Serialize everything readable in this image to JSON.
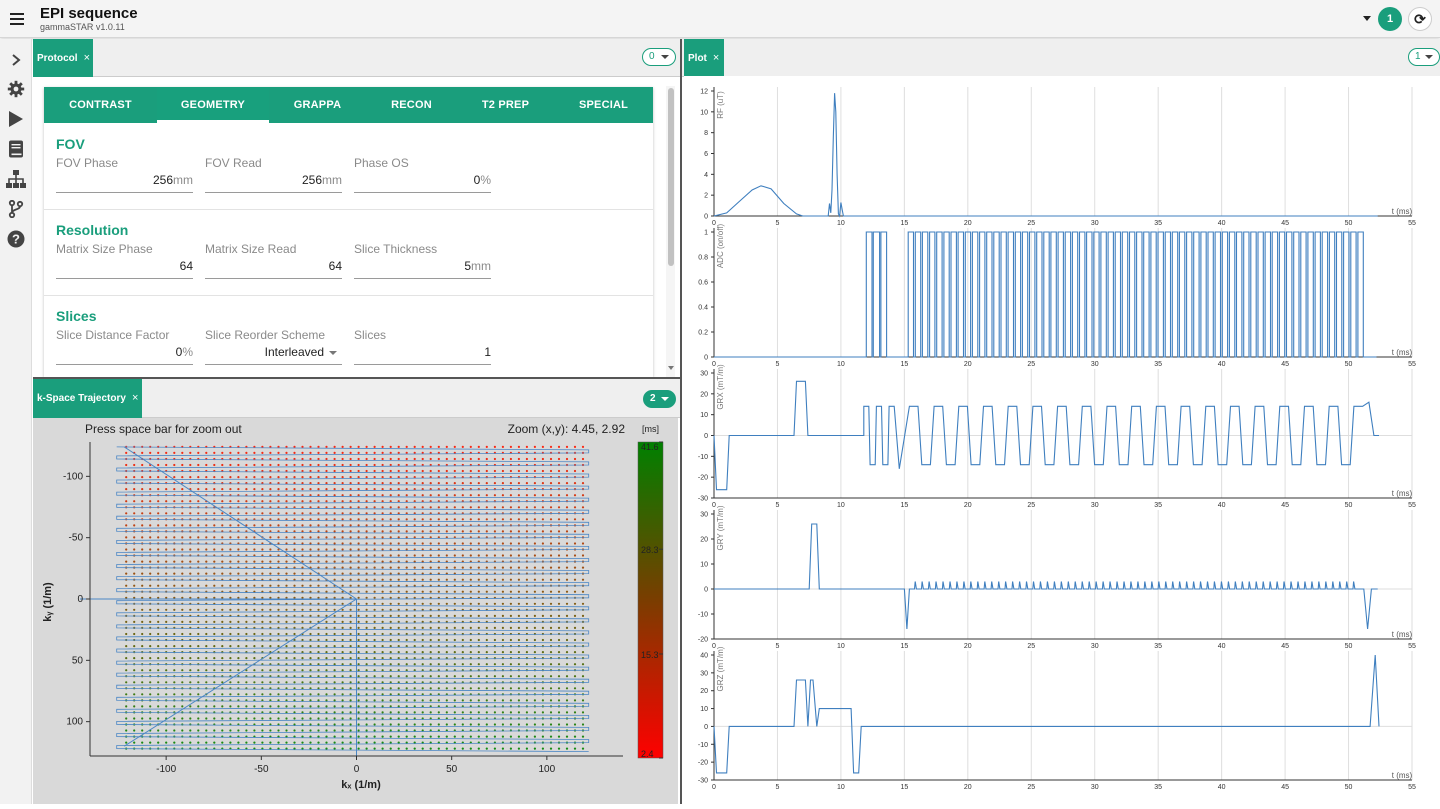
{
  "header": {
    "title": "EPI sequence",
    "version": "gammaSTAR v1.0.11",
    "user_badge": "1",
    "accent_color": "#1a9e7c"
  },
  "sidebar": {
    "icons": [
      "chevron-right-icon",
      "gear-icon",
      "play-icon",
      "book-icon",
      "sitemap-icon",
      "branch-icon",
      "help-icon"
    ]
  },
  "protocol_panel": {
    "tab_label": "Protocol",
    "close": "×",
    "pill_value": "0",
    "tabs": [
      "CONTRAST",
      "GEOMETRY",
      "GRAPPA",
      "RECON",
      "T2 PREP",
      "SPECIAL"
    ],
    "active_tab": "GEOMETRY",
    "sections": [
      {
        "title": "FOV",
        "fields": [
          {
            "label": "FOV Phase",
            "value": "256",
            "unit": "mm"
          },
          {
            "label": "FOV Read",
            "value": "256",
            "unit": "mm"
          },
          {
            "label": "Phase OS",
            "value": "0",
            "unit": "%"
          }
        ]
      },
      {
        "title": "Resolution",
        "fields": [
          {
            "label": "Matrix Size Phase",
            "value": "64",
            "unit": ""
          },
          {
            "label": "Matrix Size Read",
            "value": "64",
            "unit": ""
          },
          {
            "label": "Slice Thickness",
            "value": "5",
            "unit": "mm"
          }
        ]
      },
      {
        "title": "Slices",
        "fields": [
          {
            "label": "Slice Distance Factor",
            "value": "0",
            "unit": "%"
          },
          {
            "label": "Slice Reorder Scheme",
            "value": "Interleaved",
            "unit": ""
          },
          {
            "label": "Slices",
            "value": "1",
            "unit": ""
          }
        ]
      }
    ]
  },
  "kspace_panel": {
    "tab_label": "k-Space Trajectory",
    "close": "×",
    "pill_value": "2",
    "hint": "Press space bar for zoom out",
    "zoom": "Zoom (x,y): 4.45, 2.92",
    "xlabel": "kₓ (1/m)",
    "ylabel": "kᵧ (1/m)",
    "colorbar_unit": "[ms]",
    "colorbar_ticks": [
      "41.6",
      "28.3",
      "15.3",
      "2.4"
    ],
    "xticks": [
      "-100",
      "-50",
      "0",
      "50",
      "100"
    ],
    "yticks": [
      "-100",
      "-50",
      "0",
      "50",
      "100"
    ]
  },
  "plot_panel": {
    "tab_label": "Plot",
    "close": "×",
    "pill_value": "1"
  },
  "chart_data": [
    {
      "type": "line",
      "ylabel": "RF (uT)",
      "xlabel": "t (ms)",
      "xlim": [
        0,
        55
      ],
      "ylim": [
        0,
        12
      ],
      "yticks": [
        0,
        2,
        4,
        6,
        8,
        10,
        12
      ],
      "xticks": [
        0,
        5,
        10,
        15,
        20,
        25,
        30,
        35,
        40,
        45,
        50,
        55
      ],
      "series": [
        {
          "x": [
            0,
            1,
            2,
            3,
            3.7,
            4.5,
            5.5,
            6.5,
            7,
            9,
            9.1,
            9.2,
            9.3,
            9.4,
            9.5,
            9.6,
            9.7,
            9.8,
            9.9,
            10,
            10.1,
            10.2,
            10.3,
            10.4,
            10.5,
            10.7,
            52.3
          ],
          "y": [
            0,
            0.3,
            1.4,
            2.5,
            2.9,
            2.6,
            1.2,
            0.2,
            0,
            0,
            1.2,
            0.3,
            2.5,
            7.5,
            11.8,
            10,
            4,
            0.2,
            0,
            1.3,
            0.6,
            0,
            0,
            0,
            0,
            0,
            0
          ]
        }
      ]
    },
    {
      "type": "line",
      "ylabel": "ADC (on/off)",
      "xlabel": "t (ms)",
      "xlim": [
        0,
        55
      ],
      "ylim": [
        0,
        1
      ],
      "yticks": [
        0,
        0.2,
        0.4,
        0.6,
        0.8,
        1
      ],
      "xticks": [
        0,
        5,
        10,
        15,
        20,
        25,
        30,
        35,
        40,
        45,
        50,
        55
      ],
      "readouts": {
        "first": [
          12,
          13
        ],
        "train_start": 15.3,
        "train_end": 51.3,
        "count": 64
      }
    },
    {
      "type": "line",
      "ylabel": "GRX (mT/m)",
      "xlabel": "t (ms)",
      "xlim": [
        0,
        55
      ],
      "ylim": [
        -30,
        30
      ],
      "yticks": [
        -30,
        -20,
        -10,
        0,
        10,
        20,
        30
      ],
      "xticks": [
        0,
        5,
        10,
        15,
        20,
        25,
        30,
        35,
        40,
        45,
        50,
        55
      ],
      "series": [
        {
          "x": [
            0,
            0.2,
            1,
            1.2,
            6.3,
            6.5,
            7.2,
            7.4,
            11.8
          ],
          "y": [
            0,
            -26,
            -26,
            0,
            0,
            26,
            26,
            0,
            0
          ]
        }
      ],
      "readout_amplitude": 14
    },
    {
      "type": "line",
      "ylabel": "GRY (mT/m)",
      "xlabel": "t (ms)",
      "xlim": [
        0,
        55
      ],
      "ylim": [
        -20,
        30
      ],
      "yticks": [
        -20,
        -10,
        0,
        10,
        20,
        30
      ],
      "xticks": [
        0,
        5,
        10,
        15,
        20,
        25,
        30,
        35,
        40,
        45,
        50,
        55
      ],
      "series": [
        {
          "x": [
            0,
            7.5,
            7.7,
            8.1,
            8.3,
            15,
            15.2,
            15.4,
            52.3
          ],
          "y": [
            0,
            0,
            26,
            26,
            0,
            0,
            -16,
            0,
            0
          ]
        }
      ],
      "blip_amplitude": 3
    },
    {
      "type": "line",
      "ylabel": "GRZ (mT/m)",
      "xlabel": "t (ms)",
      "xlim": [
        0,
        55
      ],
      "ylim": [
        -30,
        40
      ],
      "yticks": [
        -30,
        -20,
        -10,
        0,
        10,
        20,
        30,
        40
      ],
      "xticks": [
        0,
        5,
        10,
        15,
        20,
        25,
        30,
        35,
        40,
        45,
        50,
        55
      ],
      "series": [
        {
          "x": [
            0,
            0.2,
            1,
            1.2,
            6.3,
            6.5,
            7.2,
            7.4,
            7.6,
            7.8,
            8.1,
            8.3,
            8.4,
            10.8,
            11,
            11.4,
            11.6,
            51.7,
            52.1,
            52.4
          ],
          "y": [
            0,
            -26,
            -26,
            0,
            0,
            26,
            26,
            0,
            26,
            26,
            0,
            10,
            10,
            10,
            -26,
            -26,
            0,
            0,
            40,
            0
          ]
        }
      ]
    }
  ]
}
